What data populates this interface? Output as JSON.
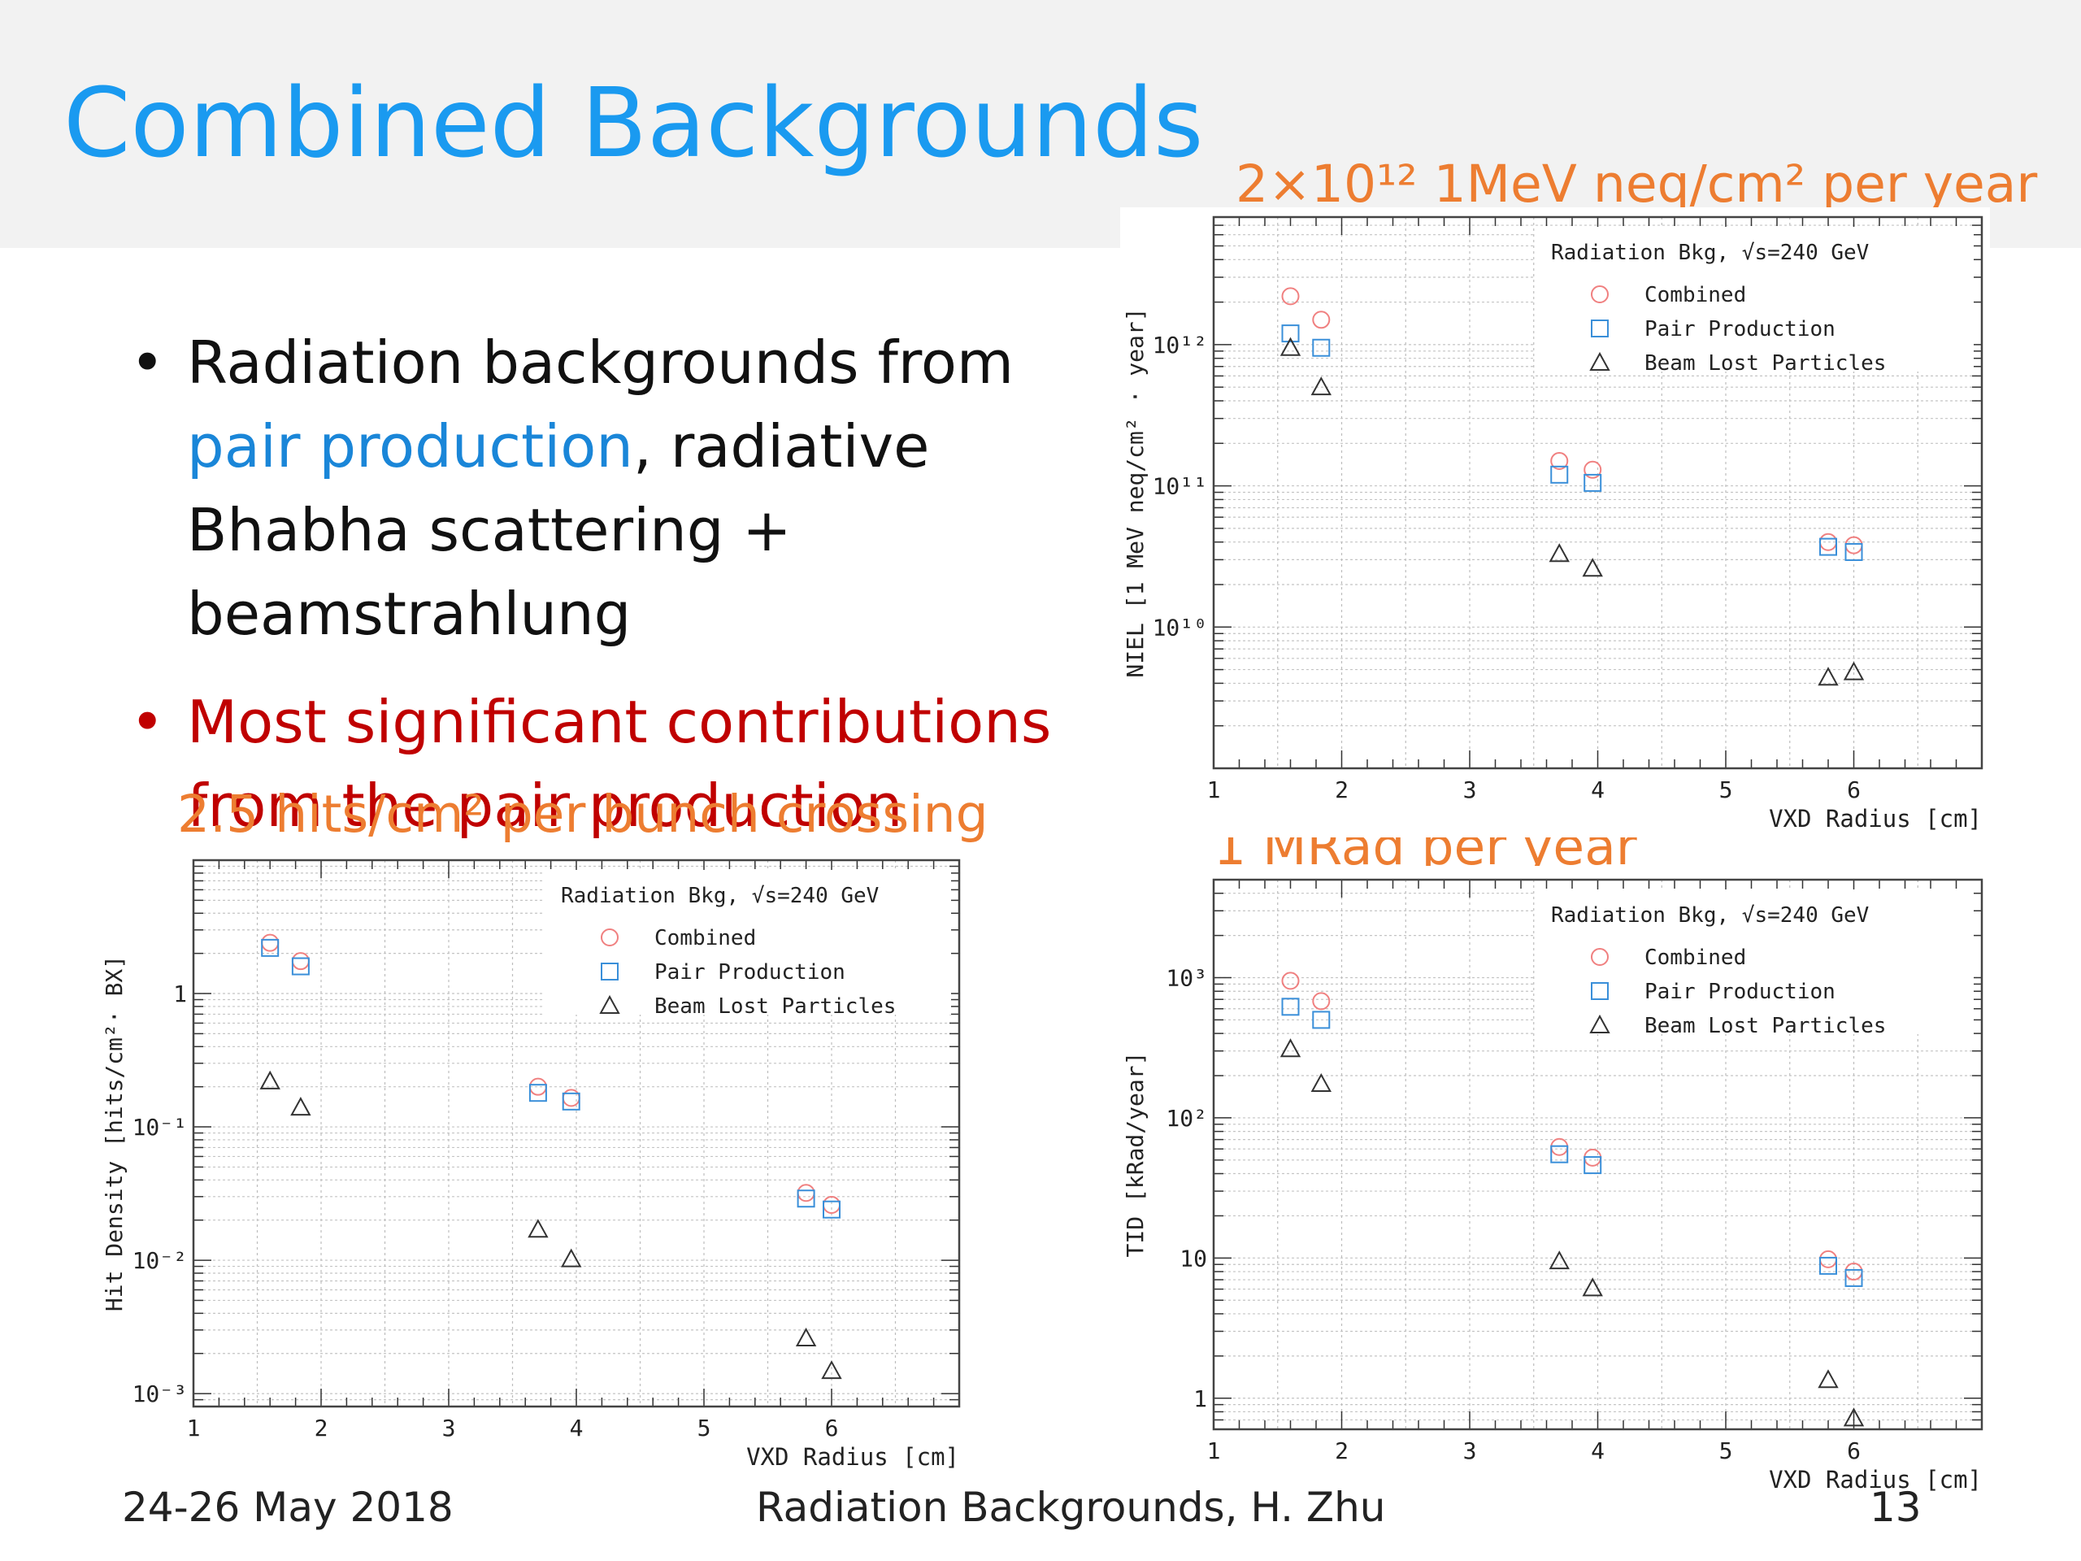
{
  "slide": {
    "title": "Combined Backgrounds",
    "bullets": [
      {
        "parts": [
          "Radiation backgrounds from ",
          "pair production",
          ", radiative Bhabha scattering + beamstrahlung"
        ]
      },
      {
        "text": "Most significant contributions from  the pair production"
      }
    ],
    "annotations": {
      "hit_density": "2.5 hits/cm² per bunch crossing",
      "niel": "2×10¹² 1MeV neq/cm² per year",
      "tid": "1 MRad per year"
    },
    "footer": {
      "date": "24-26 May 2018",
      "center": "Radiation Backgrounds, H. Zhu",
      "page": "13"
    }
  },
  "colors": {
    "title": "#1a9af0",
    "combined": "#f08080",
    "pair": "#3a8fd9",
    "beam": "#333333",
    "annotation": "#ed7d31",
    "alert": "#c00000"
  },
  "chart_data": [
    {
      "id": "hit_density",
      "type": "scatter",
      "yscale": "log",
      "xlabel": "VXD Radius  [cm]",
      "ylabel": "Hit Density [hits/cm²· BX]",
      "xlim": [
        1,
        7
      ],
      "ylim": [
        0.0008,
        10
      ],
      "xticks": [
        "1",
        "2",
        "3",
        "4",
        "5",
        "6"
      ],
      "yticks": [
        {
          "v": 0.001,
          "label": "10⁻³"
        },
        {
          "v": 0.01,
          "label": "10⁻²"
        },
        {
          "v": 0.1,
          "label": "10⁻¹"
        },
        {
          "v": 1,
          "label": "1"
        }
      ],
      "legend_title": "Radiation Bkg, √s=240 GeV",
      "legend_position": "top-right",
      "series": [
        {
          "name": "Combined",
          "marker": "circle",
          "x": [
            1.6,
            1.84,
            3.7,
            3.96,
            5.8,
            6.0
          ],
          "y": [
            2.4,
            1.75,
            0.2,
            0.165,
            0.032,
            0.026
          ]
        },
        {
          "name": "Pair Production",
          "marker": "square",
          "x": [
            1.6,
            1.84,
            3.7,
            3.96,
            5.8,
            6.0
          ],
          "y": [
            2.2,
            1.6,
            0.18,
            0.155,
            0.029,
            0.024
          ]
        },
        {
          "name": "Beam Lost Particles",
          "marker": "triangle",
          "x": [
            1.6,
            1.84,
            3.7,
            3.96,
            5.8,
            6.0
          ],
          "y": [
            0.22,
            0.14,
            0.017,
            0.0102,
            0.0026,
            0.00148
          ]
        }
      ]
    },
    {
      "id": "niel",
      "type": "scatter",
      "yscale": "log",
      "xlabel": "VXD Radius  [cm]",
      "ylabel": "NIEL [1 MeV neq/cm² · year]",
      "xlim": [
        1,
        7
      ],
      "ylim": [
        1000000000.0,
        8000000000000.0
      ],
      "xticks": [
        "1",
        "2",
        "3",
        "4",
        "5",
        "6"
      ],
      "yticks": [
        {
          "v": 10000000000.0,
          "label": "10¹⁰"
        },
        {
          "v": 100000000000.0,
          "label": "10¹¹"
        },
        {
          "v": 1000000000000.0,
          "label": "10¹²"
        }
      ],
      "legend_title": "Radiation Bkg, √s=240 GeV",
      "legend_position": "top-right",
      "series": [
        {
          "name": "Combined",
          "marker": "circle",
          "x": [
            1.6,
            1.84,
            3.7,
            3.96,
            5.8,
            6.0
          ],
          "y": [
            2200000000000.0,
            1500000000000.0,
            150000000000.0,
            130000000000.0,
            40000000000.0,
            38000000000.0
          ]
        },
        {
          "name": "Pair Production",
          "marker": "square",
          "x": [
            1.6,
            1.84,
            3.7,
            3.96,
            5.8,
            6.0
          ],
          "y": [
            1200000000000.0,
            950000000000.0,
            120000000000.0,
            105000000000.0,
            37000000000.0,
            34000000000.0
          ]
        },
        {
          "name": "Beam Lost Particles",
          "marker": "triangle",
          "x": [
            1.6,
            1.84,
            3.7,
            3.96,
            5.8,
            6.0
          ],
          "y": [
            950000000000.0,
            500000000000.0,
            33000000000.0,
            26000000000.0,
            4400000000.0,
            4800000000.0
          ]
        }
      ]
    },
    {
      "id": "tid",
      "type": "scatter",
      "yscale": "log",
      "xlabel": "VXD Radius  [cm]",
      "ylabel": "TID  [kRad/year]",
      "xlim": [
        1,
        7
      ],
      "ylim": [
        0.6,
        5000
      ],
      "xticks": [
        "1",
        "2",
        "3",
        "4",
        "5",
        "6"
      ],
      "yticks": [
        {
          "v": 1,
          "label": "1"
        },
        {
          "v": 10,
          "label": "10"
        },
        {
          "v": 100,
          "label": "10²"
        },
        {
          "v": 1000,
          "label": "10³"
        }
      ],
      "legend_title": "Radiation Bkg, √s=240 GeV",
      "legend_position": "top-right",
      "series": [
        {
          "name": "Combined",
          "marker": "circle",
          "x": [
            1.6,
            1.84,
            3.7,
            3.96,
            5.8,
            6.0
          ],
          "y": [
            950,
            680,
            62,
            52,
            9.8,
            8.0
          ]
        },
        {
          "name": "Pair Production",
          "marker": "square",
          "x": [
            1.6,
            1.84,
            3.7,
            3.96,
            5.8,
            6.0
          ],
          "y": [
            620,
            500,
            55,
            46,
            8.8,
            7.2
          ]
        },
        {
          "name": "Beam Lost Particles",
          "marker": "triangle",
          "x": [
            1.6,
            1.84,
            3.7,
            3.96,
            5.8,
            6.0
          ],
          "y": [
            310,
            175,
            9.5,
            6.1,
            1.35,
            0.72
          ]
        }
      ]
    }
  ]
}
